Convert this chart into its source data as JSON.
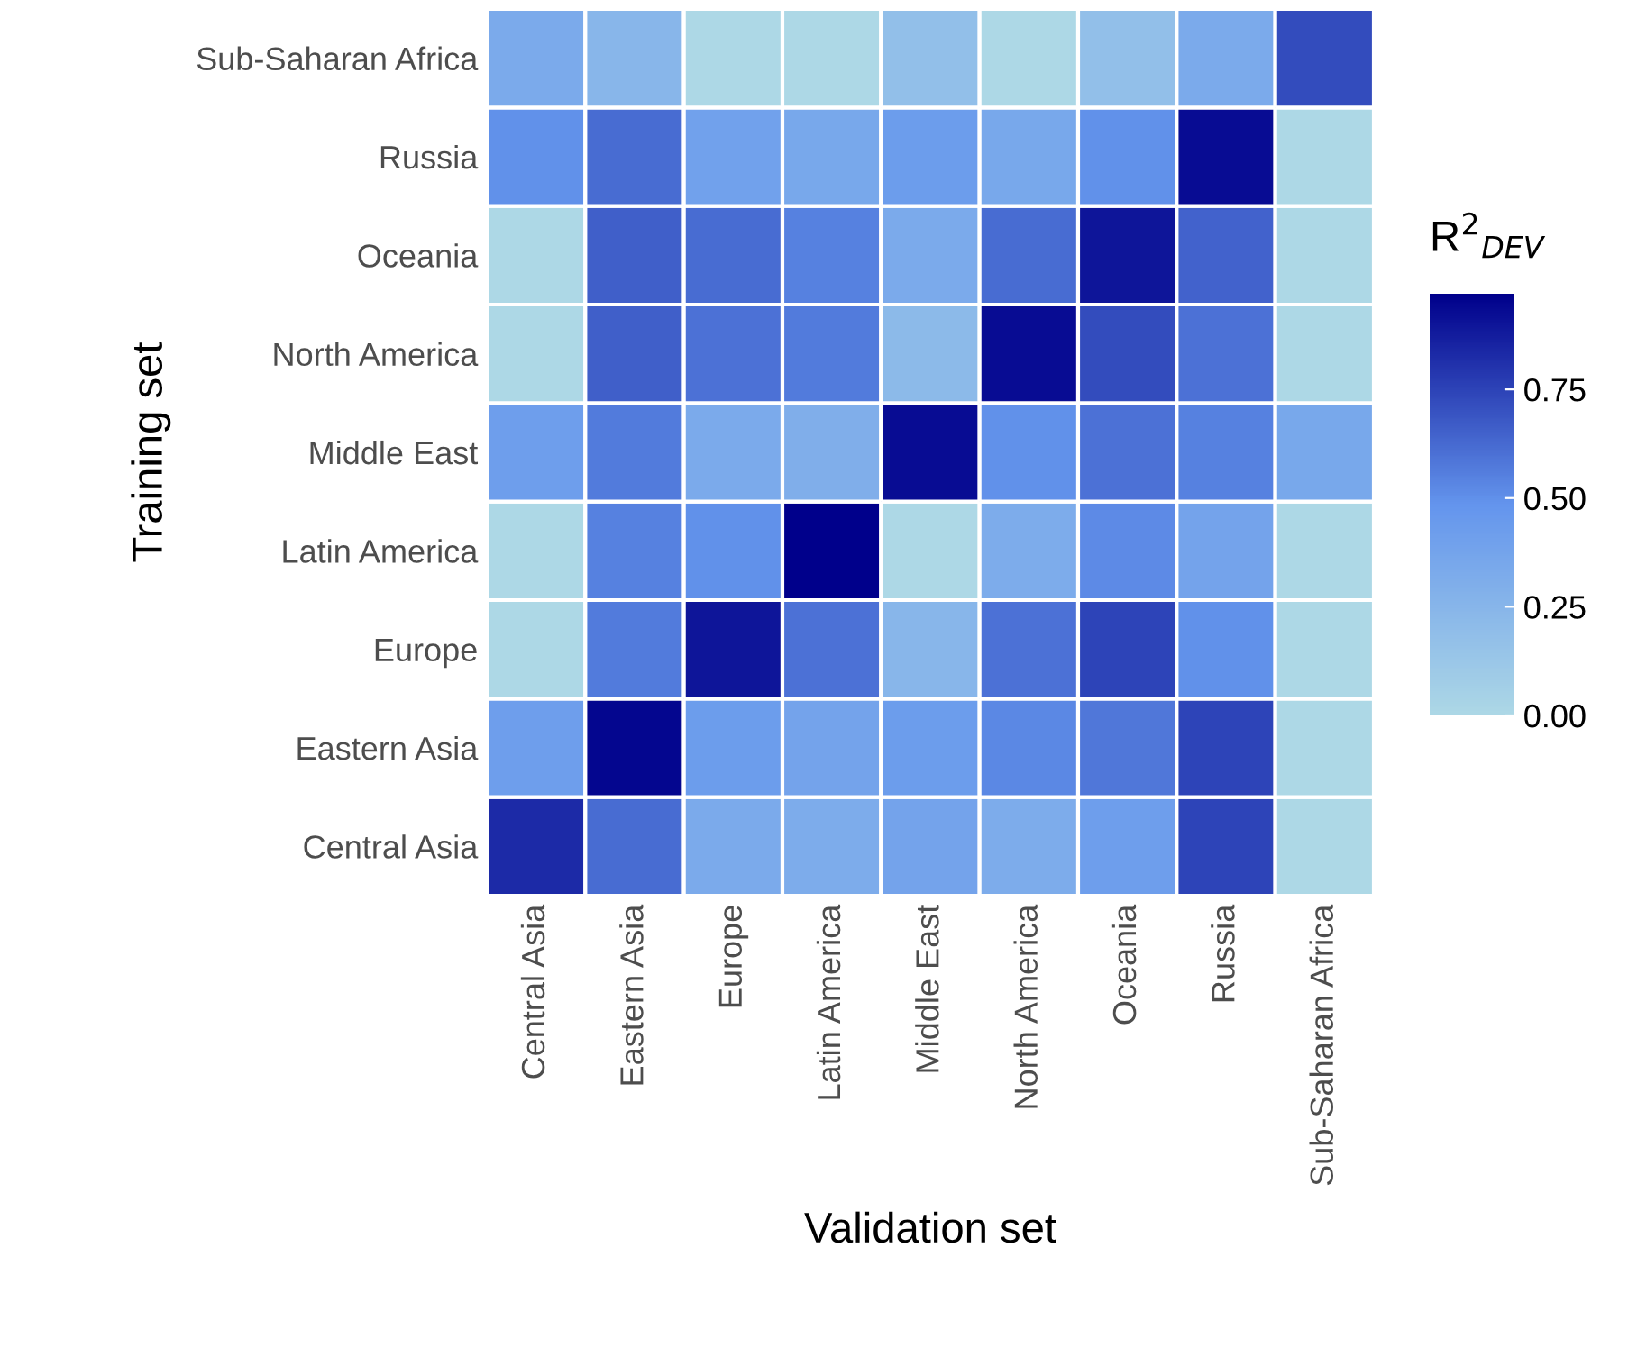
{
  "chart_data": {
    "type": "heatmap",
    "xlabel": "Validation set",
    "ylabel": "Training set",
    "clabel": "R$^{2}$$_{DEV}$",
    "categories": [
      "Central Asia",
      "Eastern Asia",
      "Europe",
      "Latin America",
      "Middle East",
      "North America",
      "Oceania",
      "Russia",
      "Sub-Saharan Africa"
    ],
    "y_categories": [
      "Sub-Saharan Africa",
      "Russia",
      "Oceania",
      "North America",
      "Middle East",
      "Latin America",
      "Europe",
      "Eastern Asia",
      "Central Asia"
    ],
    "cells": [
      [
        0.33,
        0.25,
        0,
        0,
        0.18,
        0,
        0.18,
        0.33,
        0.72
      ],
      [
        0.5,
        0.62,
        0.4,
        0.35,
        0.43,
        0.35,
        0.5,
        0.93,
        0
      ],
      [
        0,
        0.66,
        0.62,
        0.55,
        0.33,
        0.62,
        0.9,
        0.65,
        0
      ],
      [
        0,
        0.66,
        0.6,
        0.57,
        0.22,
        0.93,
        0.72,
        0.6,
        0
      ],
      [
        0.42,
        0.57,
        0.33,
        0.3,
        0.93,
        0.5,
        0.6,
        0.55,
        0.35
      ],
      [
        0,
        0.55,
        0.5,
        0.97,
        0,
        0.32,
        0.52,
        0.38,
        0
      ],
      [
        0,
        0.57,
        0.9,
        0.6,
        0.25,
        0.6,
        0.75,
        0.5,
        0
      ],
      [
        0.42,
        0.95,
        0.43,
        0.38,
        0.43,
        0.53,
        0.58,
        0.75,
        0
      ],
      [
        0.83,
        0.62,
        0.33,
        0.32,
        0.38,
        0.32,
        0.42,
        0.75,
        0
      ]
    ],
    "clim": [
      0,
      0.97
    ],
    "cticks": [
      {
        "value": 0,
        "label": "0.00"
      },
      {
        "value": 0.25,
        "label": "0.25"
      },
      {
        "value": 0.5,
        "label": "0.50"
      },
      {
        "value": 0.75,
        "label": "0.75"
      }
    ],
    "colors": [
      "#add8e6",
      "#6495ed",
      "#00008b"
    ],
    "grid": false
  }
}
